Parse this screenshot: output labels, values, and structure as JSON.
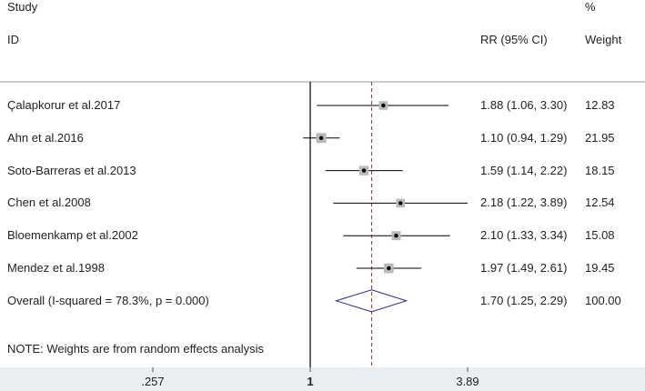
{
  "chart_data": {
    "type": "forest",
    "scale": "log",
    "header": {
      "study_label": "Study",
      "id_label": "ID",
      "effect_label": "RR (95% CI)",
      "percent_label": "%",
      "weight_label": "Weight"
    },
    "studies": [
      {
        "name": "Çalapkorur et al.2017",
        "rr": 1.88,
        "lower": 1.06,
        "upper": 3.3,
        "ci_text": "1.88 (1.06, 3.30)",
        "weight": 12.83,
        "weight_text": "12.83"
      },
      {
        "name": "Ahn et al.2016",
        "rr": 1.1,
        "lower": 0.94,
        "upper": 1.29,
        "ci_text": "1.10 (0.94, 1.29)",
        "weight": 21.95,
        "weight_text": "21.95"
      },
      {
        "name": "Soto-Barreras et al.2013",
        "rr": 1.59,
        "lower": 1.14,
        "upper": 2.22,
        "ci_text": "1.59 (1.14, 2.22)",
        "weight": 18.15,
        "weight_text": "18.15"
      },
      {
        "name": "Chen et al.2008",
        "rr": 2.18,
        "lower": 1.22,
        "upper": 3.89,
        "ci_text": "2.18 (1.22, 3.89)",
        "weight": 12.54,
        "weight_text": "12.54"
      },
      {
        "name": "Bloemenkamp et al.2002",
        "rr": 2.1,
        "lower": 1.33,
        "upper": 3.34,
        "ci_text": "2.10 (1.33, 3.34)",
        "weight": 15.08,
        "weight_text": "15.08"
      },
      {
        "name": "Mendez et al.1998",
        "rr": 1.97,
        "lower": 1.49,
        "upper": 2.61,
        "ci_text": "1.97 (1.49, 2.61)",
        "weight": 19.45,
        "weight_text": "19.45"
      }
    ],
    "overall": {
      "label": "Overall  (I-squared = 78.3%, p = 0.000)",
      "rr": 1.7,
      "lower": 1.25,
      "upper": 2.29,
      "ci_text": "1.70 (1.25, 2.29)",
      "weight_text": "100.00"
    },
    "note": "NOTE: Weights are from random effects analysis",
    "null_value": 1,
    "axis_range": [
      0.257,
      3.89
    ],
    "ticks": [
      {
        "value": 0.257,
        "label": ".257"
      },
      {
        "value": 1,
        "label": "1"
      },
      {
        "value": 3.89,
        "label": "3.89"
      }
    ],
    "colors": {
      "pooled_line": "#a02c2c",
      "diamond": "#1f2a8c",
      "axis_band": "#e8eef1"
    }
  }
}
